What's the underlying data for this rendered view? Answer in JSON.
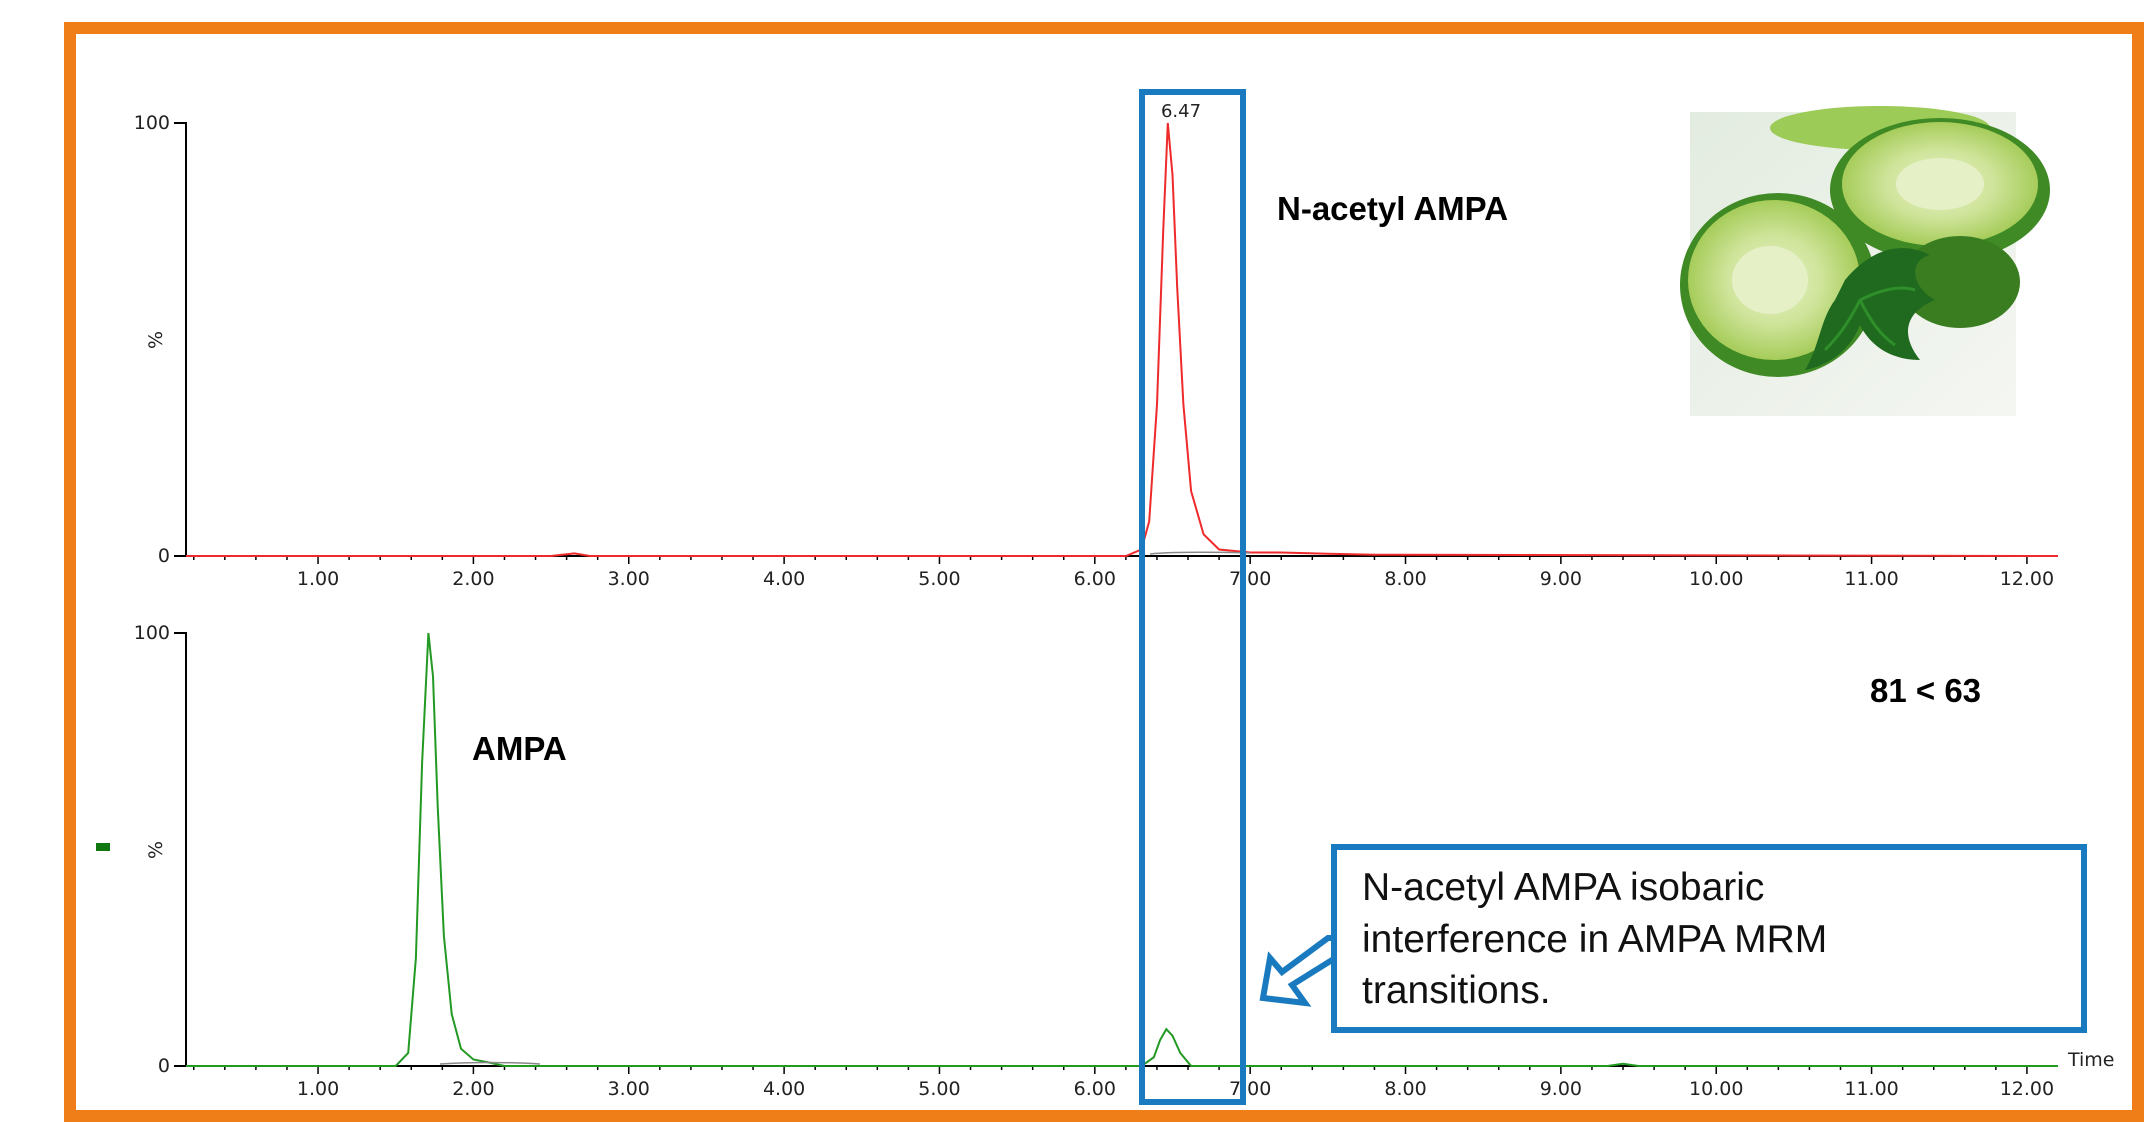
{
  "colors": {
    "frame": "#ef7d18",
    "highlight": "#1a7abf",
    "trace_top": "#ee2a2a",
    "trace_bottom": "#229922",
    "axis": "#000000",
    "legend_marker": "#117711"
  },
  "chart_data": [
    {
      "type": "line",
      "title": "",
      "xlabel": "",
      "ylabel": "%",
      "xlim": [
        0.15,
        12.2
      ],
      "ylim": [
        0,
        100
      ],
      "y_ticks": [
        "0",
        "100"
      ],
      "x_ticks": [
        "1.00",
        "2.00",
        "3.00",
        "4.00",
        "5.00",
        "6.00",
        "7.00",
        "8.00",
        "9.00",
        "10.00",
        "11.00",
        "12.00"
      ],
      "series": [
        {
          "x": [
            0.15,
            2.5,
            2.65,
            2.75,
            6.2,
            6.3,
            6.35,
            6.4,
            6.44,
            6.47,
            6.5,
            6.53,
            6.57,
            6.62,
            6.7,
            6.8,
            7.0,
            7.2,
            7.5,
            7.8,
            12.2
          ],
          "y": [
            0,
            0,
            0.6,
            0,
            0,
            1.5,
            8,
            35,
            75,
            100,
            88,
            62,
            35,
            15,
            5,
            1.5,
            0.8,
            0.8,
            0.5,
            0.3,
            0
          ]
        }
      ],
      "annotations": {
        "peak_label": "6.47",
        "compound": "N-acetyl AMPA"
      }
    },
    {
      "type": "line",
      "title": "",
      "xlabel": "Time",
      "ylabel": "%",
      "xlim": [
        0.15,
        12.2
      ],
      "ylim": [
        0,
        100
      ],
      "y_ticks": [
        "0",
        "100"
      ],
      "x_ticks": [
        "1.00",
        "2.00",
        "3.00",
        "4.00",
        "5.00",
        "6.00",
        "7.00",
        "8.00",
        "9.00",
        "10.00",
        "11.00",
        "12.00"
      ],
      "series": [
        {
          "x": [
            0.15,
            1.5,
            1.58,
            1.63,
            1.67,
            1.71,
            1.74,
            1.77,
            1.81,
            1.86,
            1.92,
            2.0,
            2.1,
            2.2,
            6.3,
            6.38,
            6.42,
            6.46,
            6.5,
            6.55,
            6.62,
            9.3,
            9.4,
            9.5,
            12.2
          ],
          "y": [
            0,
            0,
            3,
            25,
            70,
            100,
            90,
            60,
            30,
            12,
            4,
            1.5,
            0.8,
            0,
            0,
            2,
            6,
            8.5,
            7,
            3,
            0,
            0,
            0.5,
            0,
            0
          ]
        }
      ],
      "annotations": {
        "compound": "AMPA",
        "transition": "81 < 63"
      }
    }
  ],
  "callout": {
    "lines": [
      "N-acetyl AMPA isobaric",
      "interference in AMPA MRM",
      "transitions."
    ]
  },
  "image": {
    "subject": "cucumber-slices-with-parsley"
  }
}
